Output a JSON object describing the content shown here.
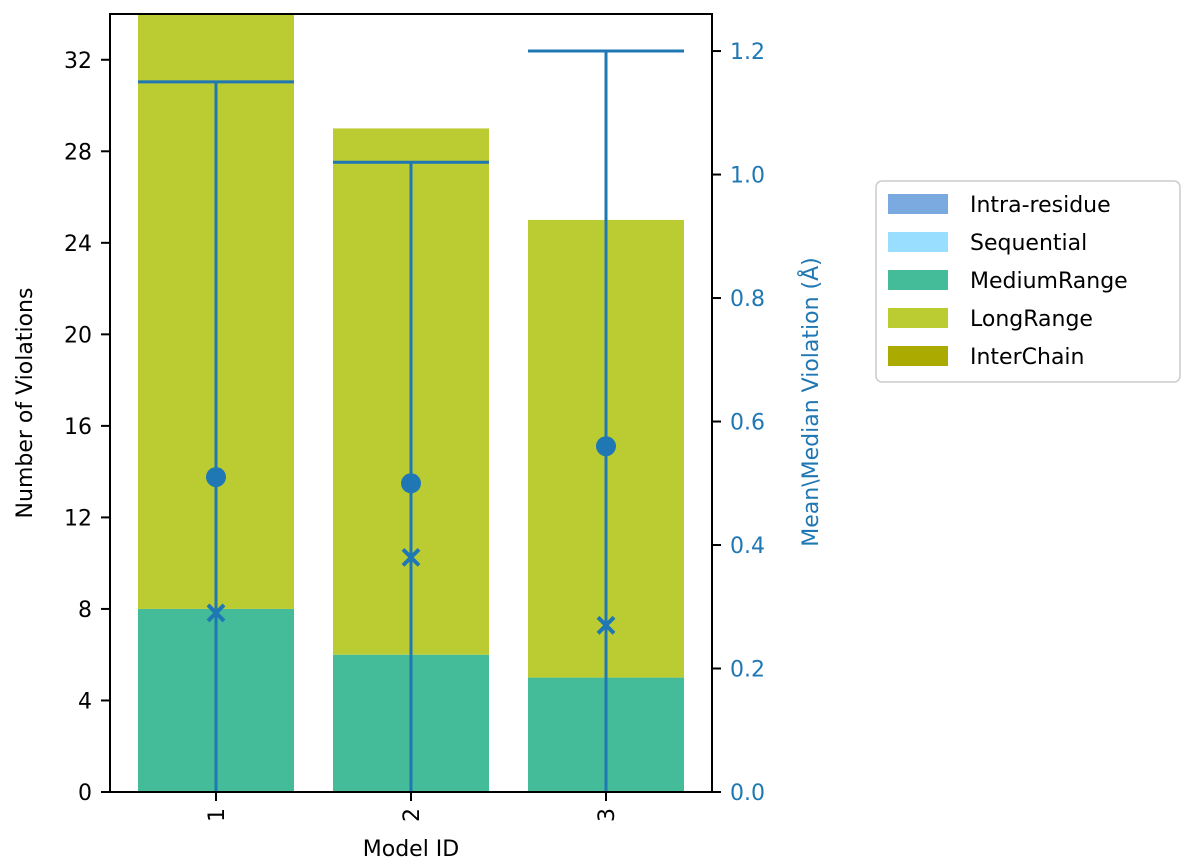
{
  "chart_data": {
    "type": "bar",
    "stacked": true,
    "xlabel": "Model ID",
    "ylabel": "Number of Violations",
    "y2label": "Mean\\Median Violation (Å)",
    "categories": [
      "1",
      "2",
      "3"
    ],
    "ylim": [
      0,
      34
    ],
    "yticks": [
      0,
      4,
      8,
      12,
      16,
      20,
      24,
      28,
      32
    ],
    "y2lim": [
      0,
      1.26
    ],
    "y2ticks": [
      "0.0",
      "0.2",
      "0.4",
      "0.6",
      "0.8",
      "1.0",
      "1.2"
    ],
    "series": [
      {
        "name": "Intra-residue",
        "color": "#7aaadf",
        "values": [
          0,
          0,
          0
        ]
      },
      {
        "name": "Sequential",
        "color": "#99ddff",
        "values": [
          0,
          0,
          0
        ]
      },
      {
        "name": "MediumRange",
        "color": "#44bb99",
        "values": [
          8,
          6,
          5
        ]
      },
      {
        "name": "LongRange",
        "color": "#bbcc33",
        "values": [
          26,
          23,
          20
        ]
      },
      {
        "name": "InterChain",
        "color": "#aaaa00",
        "values": [
          0,
          0,
          0
        ]
      }
    ],
    "violation": {
      "color": "#1f77b4",
      "mean": [
        0.51,
        0.5,
        0.56
      ],
      "median": [
        0.29,
        0.38,
        0.27
      ],
      "min": [
        0.0,
        0.0,
        0.0
      ],
      "max": [
        1.15,
        1.02,
        1.2
      ]
    },
    "legend_placement": "right, outside"
  }
}
